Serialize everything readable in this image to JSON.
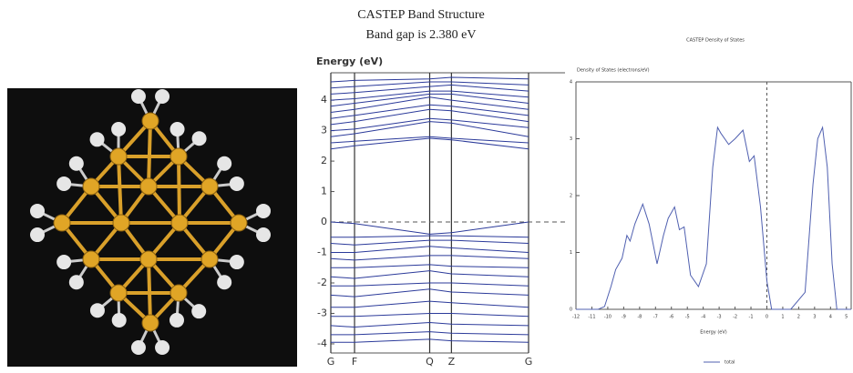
{
  "chart_data": [
    {
      "type": "line",
      "title": "CASTEP Band Structure",
      "subtitle": "Band gap is 2.380 eV",
      "y_label": "Energy (eV)",
      "x": [
        0,
        0.12,
        0.5,
        0.61,
        1
      ],
      "xlim": [
        0,
        1
      ],
      "xticks": [
        {
          "value": 0,
          "label": "G"
        },
        {
          "value": 0.12,
          "label": "F"
        },
        {
          "value": 0.5,
          "label": "Q"
        },
        {
          "value": 0.61,
          "label": "Z"
        },
        {
          "value": 1,
          "label": "G"
        }
      ],
      "ylim": [
        -4.3,
        4.9
      ],
      "yticks": [
        -4,
        -3,
        -2,
        -1,
        0,
        1,
        2,
        3,
        4
      ],
      "x_grid": true,
      "hline": 0,
      "series": [
        {
          "color": "#2b3a9a",
          "values": [
            2.4,
            2.5,
            2.75,
            2.7,
            2.4
          ]
        },
        {
          "color": "#2b3a9a",
          "values": [
            2.6,
            2.65,
            2.8,
            2.75,
            2.6
          ]
        },
        {
          "color": "#2b3a9a",
          "values": [
            2.8,
            2.9,
            3.3,
            3.25,
            2.8
          ]
        },
        {
          "color": "#2b3a9a",
          "values": [
            3.0,
            3.05,
            3.4,
            3.35,
            3.1
          ]
        },
        {
          "color": "#2b3a9a",
          "values": [
            3.2,
            3.3,
            3.7,
            3.65,
            3.3
          ]
        },
        {
          "color": "#2b3a9a",
          "values": [
            3.4,
            3.5,
            3.85,
            3.8,
            3.5
          ]
        },
        {
          "color": "#2b3a9a",
          "values": [
            3.6,
            3.7,
            4.1,
            4.0,
            3.7
          ]
        },
        {
          "color": "#2b3a9a",
          "values": [
            3.8,
            3.9,
            4.2,
            4.2,
            3.9
          ]
        },
        {
          "color": "#2b3a9a",
          "values": [
            4.0,
            4.05,
            4.3,
            4.3,
            4.1
          ]
        },
        {
          "color": "#2b3a9a",
          "values": [
            4.2,
            4.25,
            4.45,
            4.5,
            4.3
          ]
        },
        {
          "color": "#2b3a9a",
          "values": [
            4.4,
            4.45,
            4.6,
            4.6,
            4.5
          ]
        },
        {
          "color": "#2b3a9a",
          "values": [
            4.6,
            4.65,
            4.7,
            4.75,
            4.7
          ]
        },
        {
          "color": "#2b3a9a",
          "values": [
            0.0,
            -0.05,
            -0.4,
            -0.35,
            0.0
          ]
        },
        {
          "color": "#2b3a9a",
          "values": [
            -0.5,
            -0.5,
            -0.45,
            -0.45,
            -0.5
          ]
        },
        {
          "color": "#2b3a9a",
          "values": [
            -0.7,
            -0.75,
            -0.6,
            -0.6,
            -0.7
          ]
        },
        {
          "color": "#2b3a9a",
          "values": [
            -1.0,
            -1.0,
            -0.8,
            -0.85,
            -1.0
          ]
        },
        {
          "color": "#2b3a9a",
          "values": [
            -1.2,
            -1.25,
            -1.1,
            -1.1,
            -1.2
          ]
        },
        {
          "color": "#2b3a9a",
          "values": [
            -1.5,
            -1.5,
            -1.4,
            -1.45,
            -1.5
          ]
        },
        {
          "color": "#2b3a9a",
          "values": [
            -1.8,
            -1.85,
            -1.6,
            -1.7,
            -1.8
          ]
        },
        {
          "color": "#2b3a9a",
          "values": [
            -2.1,
            -2.1,
            -2.0,
            -2.0,
            -2.1
          ]
        },
        {
          "color": "#2b3a9a",
          "values": [
            -2.4,
            -2.45,
            -2.2,
            -2.3,
            -2.4
          ]
        },
        {
          "color": "#2b3a9a",
          "values": [
            -2.8,
            -2.8,
            -2.6,
            -2.65,
            -2.8
          ]
        },
        {
          "color": "#2b3a9a",
          "values": [
            -3.1,
            -3.1,
            -3.0,
            -3.0,
            -3.1
          ]
        },
        {
          "color": "#2b3a9a",
          "values": [
            -3.4,
            -3.45,
            -3.3,
            -3.35,
            -3.4
          ]
        },
        {
          "color": "#2b3a9a",
          "values": [
            -3.7,
            -3.7,
            -3.6,
            -3.65,
            -3.7
          ]
        },
        {
          "color": "#2b3a9a",
          "values": [
            -3.95,
            -3.95,
            -3.85,
            -3.9,
            -3.95
          ]
        }
      ]
    },
    {
      "type": "line",
      "title": "CASTEP Density of States",
      "y_label": "Density of States (electrons/eV)",
      "x_label": "Energy (eV)",
      "x": [
        -12,
        -10.6,
        -10.2,
        -9.8,
        -9.5,
        -9.1,
        -8.8,
        -8.6,
        -8.3,
        -7.8,
        -7.4,
        -6.9,
        -6.5,
        -6.2,
        -5.8,
        -5.5,
        -5.2,
        -4.8,
        -4.3,
        -3.8,
        -3.4,
        -3.1,
        -2.9,
        -2.4,
        -2.0,
        -1.5,
        -1.1,
        -0.8,
        -0.4,
        0.0,
        0.3,
        1.5,
        2.4,
        2.9,
        3.2,
        3.5,
        3.8,
        4.1,
        4.4,
        5.3
      ],
      "xlim": [
        -12,
        5.3
      ],
      "xticks": [
        -12,
        -11,
        -10,
        -9,
        -8,
        -7,
        -6,
        -5,
        -4,
        -3,
        -2,
        -1,
        0,
        1,
        2,
        3,
        4,
        5
      ],
      "ylim": [
        0,
        4
      ],
      "yticks": [
        0,
        1,
        2,
        3,
        4
      ],
      "vline": 0,
      "series": [
        {
          "name": "total",
          "color": "#5060b0",
          "values": [
            0,
            0,
            0.05,
            0.4,
            0.7,
            0.9,
            1.3,
            1.2,
            1.5,
            1.85,
            1.5,
            0.8,
            1.3,
            1.6,
            1.8,
            1.4,
            1.45,
            0.6,
            0.4,
            0.8,
            2.5,
            3.2,
            3.1,
            2.9,
            3.0,
            3.15,
            2.6,
            2.7,
            1.8,
            0.5,
            0,
            0,
            0.3,
            2.2,
            3.0,
            3.2,
            2.5,
            0.8,
            0,
            0
          ]
        }
      ]
    }
  ]
}
